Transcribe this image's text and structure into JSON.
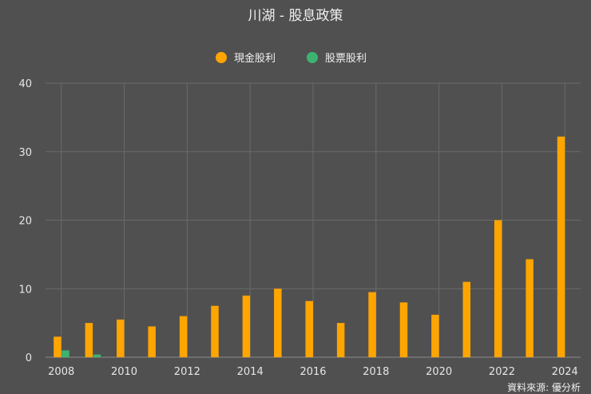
{
  "chart_data": {
    "type": "bar",
    "title": "川湖 - 股息政策",
    "xlabel": "",
    "ylabel": "",
    "ylim": [
      0,
      40
    ],
    "yticks": [
      0,
      10,
      20,
      30,
      40
    ],
    "xticks": [
      "2008",
      "2010",
      "2012",
      "2014",
      "2016",
      "2018",
      "2020",
      "2022",
      "2024"
    ],
    "categories": [
      "2008",
      "2009",
      "2010",
      "2011",
      "2012",
      "2013",
      "2014",
      "2015",
      "2016",
      "2017",
      "2018",
      "2019",
      "2020",
      "2021",
      "2022",
      "2023",
      "2024"
    ],
    "series": [
      {
        "name": "現金股利",
        "color": "#ffa500",
        "values": [
          3.0,
          5.0,
          5.5,
          4.5,
          6.0,
          7.5,
          9.0,
          10.0,
          8.2,
          5.0,
          9.5,
          8.0,
          6.2,
          11.0,
          20.0,
          14.3,
          32.2
        ]
      },
      {
        "name": "股票股利",
        "color": "#3cb371",
        "values": [
          1.0,
          0.4,
          0,
          0,
          0,
          0,
          0,
          0,
          0,
          0,
          0,
          0,
          0,
          0,
          0,
          0,
          0
        ]
      }
    ],
    "grid": true,
    "legend_position": "top-center"
  },
  "source_label": "資料來源: 優分析"
}
